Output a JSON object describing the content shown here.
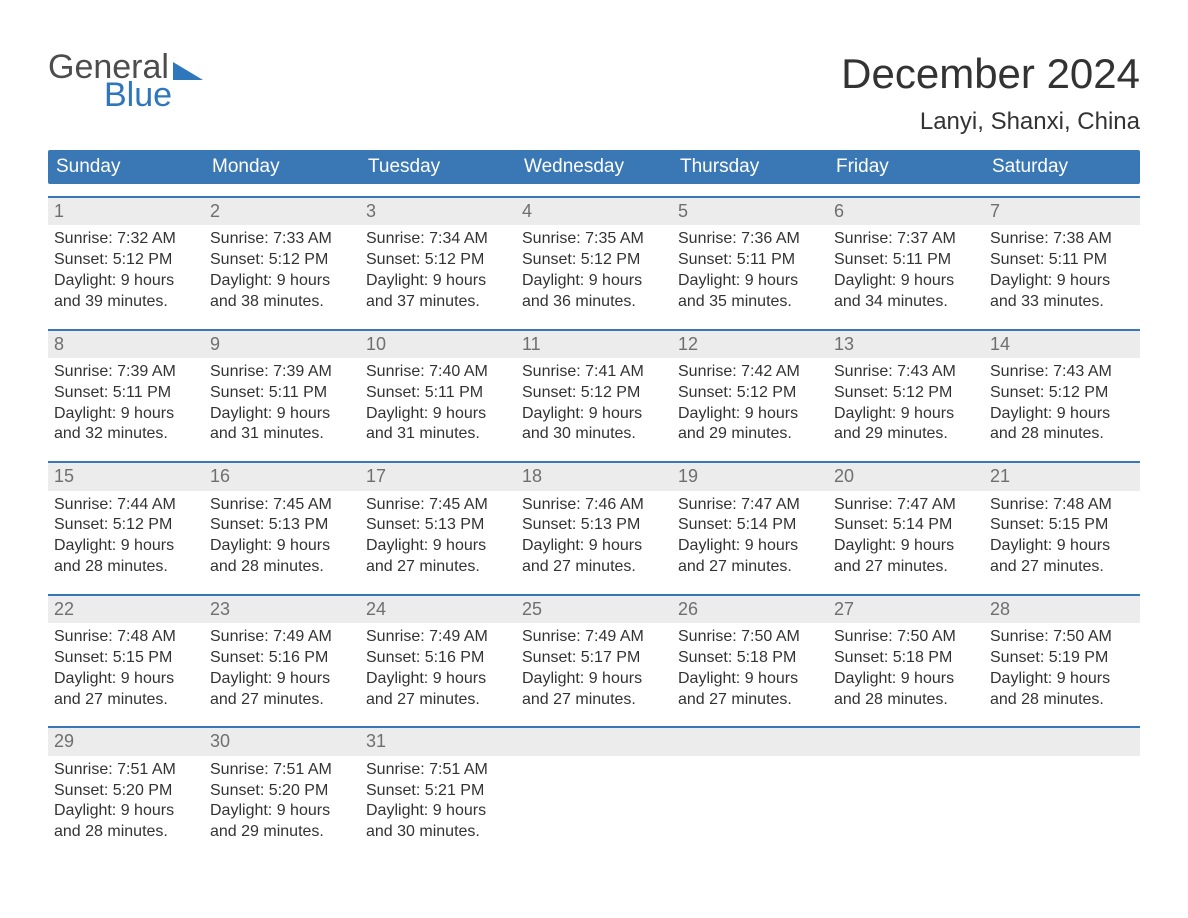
{
  "logo": {
    "text_general": "General",
    "text_blue": "Blue",
    "flag_color": "#2f77bb",
    "general_color": "#4d4d4d"
  },
  "title": "December 2024",
  "location": "Lanyi, Shanxi, China",
  "colors": {
    "header_bg": "#3a77b5",
    "header_text": "#ffffff",
    "daynum_bg": "#ececec",
    "daynum_text": "#6f6f6f",
    "body_text": "#333333",
    "week_border": "#3a77b5",
    "page_bg": "#ffffff"
  },
  "fonts": {
    "title_size": 42,
    "location_size": 24,
    "weekday_size": 19,
    "daynum_size": 18,
    "content_size": 16
  },
  "weekdays": [
    "Sunday",
    "Monday",
    "Tuesday",
    "Wednesday",
    "Thursday",
    "Friday",
    "Saturday"
  ],
  "weeks": [
    [
      {
        "num": "1",
        "sunrise": "Sunrise: 7:32 AM",
        "sunset": "Sunset: 5:12 PM",
        "day1": "Daylight: 9 hours",
        "day2": "and 39 minutes."
      },
      {
        "num": "2",
        "sunrise": "Sunrise: 7:33 AM",
        "sunset": "Sunset: 5:12 PM",
        "day1": "Daylight: 9 hours",
        "day2": "and 38 minutes."
      },
      {
        "num": "3",
        "sunrise": "Sunrise: 7:34 AM",
        "sunset": "Sunset: 5:12 PM",
        "day1": "Daylight: 9 hours",
        "day2": "and 37 minutes."
      },
      {
        "num": "4",
        "sunrise": "Sunrise: 7:35 AM",
        "sunset": "Sunset: 5:12 PM",
        "day1": "Daylight: 9 hours",
        "day2": "and 36 minutes."
      },
      {
        "num": "5",
        "sunrise": "Sunrise: 7:36 AM",
        "sunset": "Sunset: 5:11 PM",
        "day1": "Daylight: 9 hours",
        "day2": "and 35 minutes."
      },
      {
        "num": "6",
        "sunrise": "Sunrise: 7:37 AM",
        "sunset": "Sunset: 5:11 PM",
        "day1": "Daylight: 9 hours",
        "day2": "and 34 minutes."
      },
      {
        "num": "7",
        "sunrise": "Sunrise: 7:38 AM",
        "sunset": "Sunset: 5:11 PM",
        "day1": "Daylight: 9 hours",
        "day2": "and 33 minutes."
      }
    ],
    [
      {
        "num": "8",
        "sunrise": "Sunrise: 7:39 AM",
        "sunset": "Sunset: 5:11 PM",
        "day1": "Daylight: 9 hours",
        "day2": "and 32 minutes."
      },
      {
        "num": "9",
        "sunrise": "Sunrise: 7:39 AM",
        "sunset": "Sunset: 5:11 PM",
        "day1": "Daylight: 9 hours",
        "day2": "and 31 minutes."
      },
      {
        "num": "10",
        "sunrise": "Sunrise: 7:40 AM",
        "sunset": "Sunset: 5:11 PM",
        "day1": "Daylight: 9 hours",
        "day2": "and 31 minutes."
      },
      {
        "num": "11",
        "sunrise": "Sunrise: 7:41 AM",
        "sunset": "Sunset: 5:12 PM",
        "day1": "Daylight: 9 hours",
        "day2": "and 30 minutes."
      },
      {
        "num": "12",
        "sunrise": "Sunrise: 7:42 AM",
        "sunset": "Sunset: 5:12 PM",
        "day1": "Daylight: 9 hours",
        "day2": "and 29 minutes."
      },
      {
        "num": "13",
        "sunrise": "Sunrise: 7:43 AM",
        "sunset": "Sunset: 5:12 PM",
        "day1": "Daylight: 9 hours",
        "day2": "and 29 minutes."
      },
      {
        "num": "14",
        "sunrise": "Sunrise: 7:43 AM",
        "sunset": "Sunset: 5:12 PM",
        "day1": "Daylight: 9 hours",
        "day2": "and 28 minutes."
      }
    ],
    [
      {
        "num": "15",
        "sunrise": "Sunrise: 7:44 AM",
        "sunset": "Sunset: 5:12 PM",
        "day1": "Daylight: 9 hours",
        "day2": "and 28 minutes."
      },
      {
        "num": "16",
        "sunrise": "Sunrise: 7:45 AM",
        "sunset": "Sunset: 5:13 PM",
        "day1": "Daylight: 9 hours",
        "day2": "and 28 minutes."
      },
      {
        "num": "17",
        "sunrise": "Sunrise: 7:45 AM",
        "sunset": "Sunset: 5:13 PM",
        "day1": "Daylight: 9 hours",
        "day2": "and 27 minutes."
      },
      {
        "num": "18",
        "sunrise": "Sunrise: 7:46 AM",
        "sunset": "Sunset: 5:13 PM",
        "day1": "Daylight: 9 hours",
        "day2": "and 27 minutes."
      },
      {
        "num": "19",
        "sunrise": "Sunrise: 7:47 AM",
        "sunset": "Sunset: 5:14 PM",
        "day1": "Daylight: 9 hours",
        "day2": "and 27 minutes."
      },
      {
        "num": "20",
        "sunrise": "Sunrise: 7:47 AM",
        "sunset": "Sunset: 5:14 PM",
        "day1": "Daylight: 9 hours",
        "day2": "and 27 minutes."
      },
      {
        "num": "21",
        "sunrise": "Sunrise: 7:48 AM",
        "sunset": "Sunset: 5:15 PM",
        "day1": "Daylight: 9 hours",
        "day2": "and 27 minutes."
      }
    ],
    [
      {
        "num": "22",
        "sunrise": "Sunrise: 7:48 AM",
        "sunset": "Sunset: 5:15 PM",
        "day1": "Daylight: 9 hours",
        "day2": "and 27 minutes."
      },
      {
        "num": "23",
        "sunrise": "Sunrise: 7:49 AM",
        "sunset": "Sunset: 5:16 PM",
        "day1": "Daylight: 9 hours",
        "day2": "and 27 minutes."
      },
      {
        "num": "24",
        "sunrise": "Sunrise: 7:49 AM",
        "sunset": "Sunset: 5:16 PM",
        "day1": "Daylight: 9 hours",
        "day2": "and 27 minutes."
      },
      {
        "num": "25",
        "sunrise": "Sunrise: 7:49 AM",
        "sunset": "Sunset: 5:17 PM",
        "day1": "Daylight: 9 hours",
        "day2": "and 27 minutes."
      },
      {
        "num": "26",
        "sunrise": "Sunrise: 7:50 AM",
        "sunset": "Sunset: 5:18 PM",
        "day1": "Daylight: 9 hours",
        "day2": "and 27 minutes."
      },
      {
        "num": "27",
        "sunrise": "Sunrise: 7:50 AM",
        "sunset": "Sunset: 5:18 PM",
        "day1": "Daylight: 9 hours",
        "day2": "and 28 minutes."
      },
      {
        "num": "28",
        "sunrise": "Sunrise: 7:50 AM",
        "sunset": "Sunset: 5:19 PM",
        "day1": "Daylight: 9 hours",
        "day2": "and 28 minutes."
      }
    ],
    [
      {
        "num": "29",
        "sunrise": "Sunrise: 7:51 AM",
        "sunset": "Sunset: 5:20 PM",
        "day1": "Daylight: 9 hours",
        "day2": "and 28 minutes."
      },
      {
        "num": "30",
        "sunrise": "Sunrise: 7:51 AM",
        "sunset": "Sunset: 5:20 PM",
        "day1": "Daylight: 9 hours",
        "day2": "and 29 minutes."
      },
      {
        "num": "31",
        "sunrise": "Sunrise: 7:51 AM",
        "sunset": "Sunset: 5:21 PM",
        "day1": "Daylight: 9 hours",
        "day2": "and 30 minutes."
      },
      {
        "empty": true
      },
      {
        "empty": true
      },
      {
        "empty": true
      },
      {
        "empty": true
      }
    ]
  ]
}
